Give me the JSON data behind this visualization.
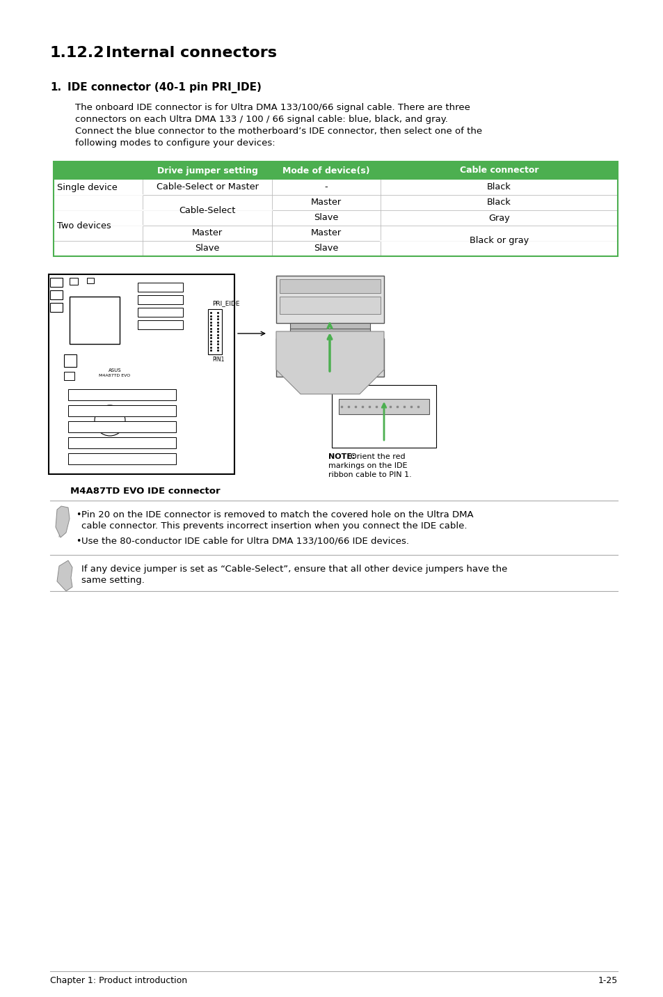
{
  "title_num": "1.12.2",
  "title_text": "Internal connectors",
  "section_num": "1.",
  "section_title": "IDE connector (40-1 pin PRI_IDE)",
  "body_lines": [
    "The onboard IDE connector is for Ultra DMA 133/100/66 signal cable. There are three",
    "connectors on each Ultra DMA 133 / 100 / 66 signal cable: blue, black, and gray.",
    "Connect the blue connector to the motherboard’s IDE connector, then select one of the",
    "following modes to configure your devices:"
  ],
  "table_header": [
    "Drive jumper setting",
    "Mode of device(s)",
    "Cable connector"
  ],
  "green_color": "#4caf50",
  "table_border_color": "#3da045",
  "bg_color": "#ffffff",
  "note1_bullet1_lines": [
    "Pin 20 on the IDE connector is removed to match the covered hole on the Ultra DMA",
    "cable connector. This prevents incorrect insertion when you connect the IDE cable."
  ],
  "note1_bullet2": "Use the 80-conductor IDE cable for Ultra DMA 133/100/66 IDE devices.",
  "note2_text_lines": [
    "If any device jumper is set as “Cable-Select”, ensure that all other device jumpers have the",
    "same setting."
  ],
  "diagram_caption": "M4A87TD EVO IDE connector",
  "diagram_note_bold": "NOTE:",
  "diagram_note_rest": "Orient the red",
  "diagram_note_line2": "markings on the IDE",
  "diagram_note_line3": "ribbon cable to PIN 1.",
  "footer_left": "Chapter 1: Product introduction",
  "footer_right": "1-25"
}
